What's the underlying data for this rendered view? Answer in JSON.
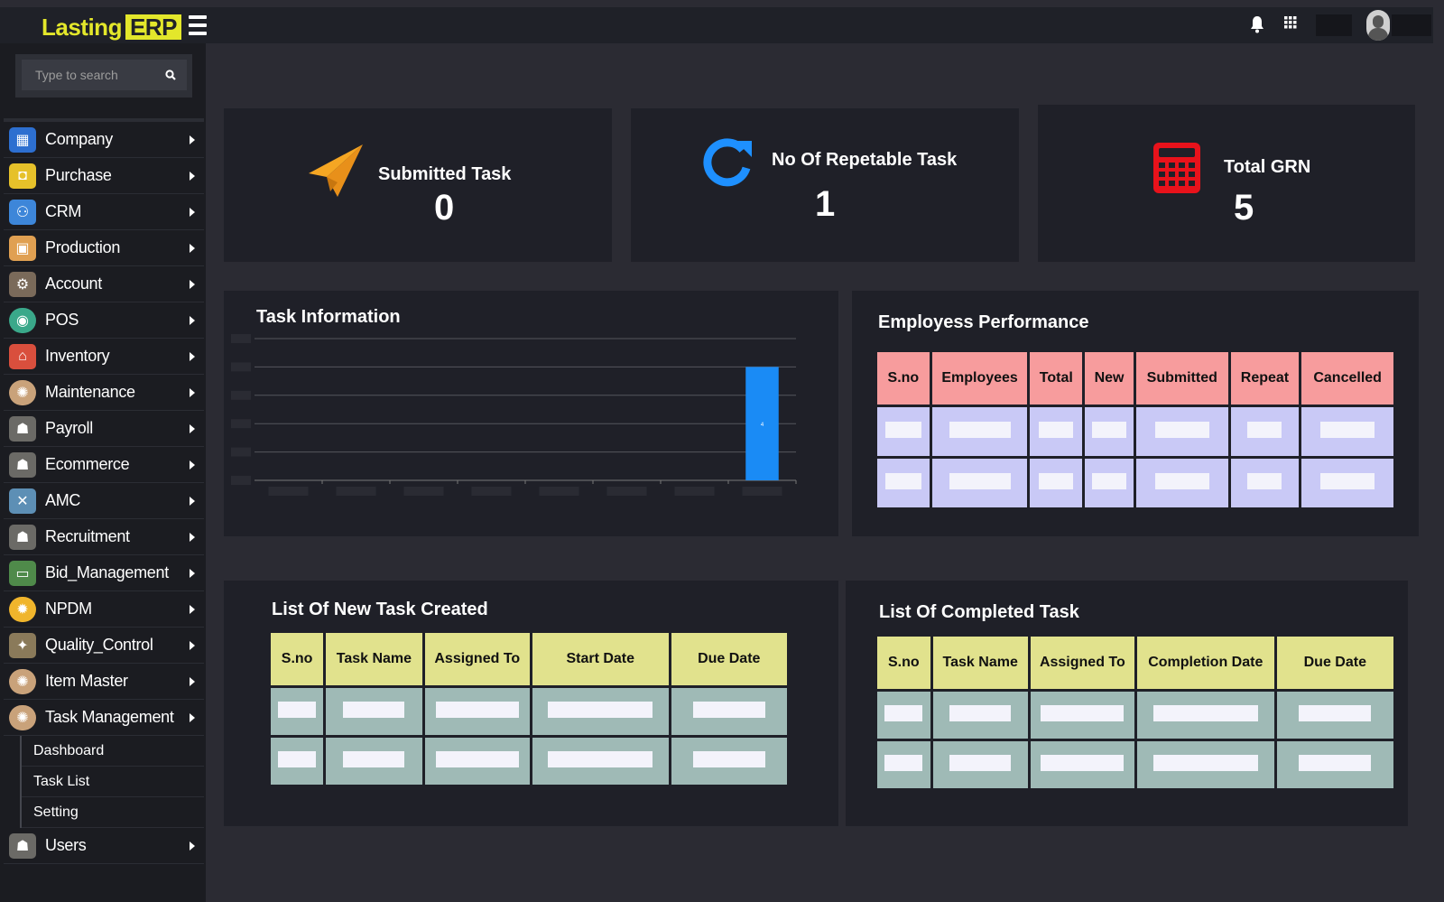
{
  "brand": {
    "part1": "Lasting",
    "part2": "ERP",
    "accent": "#e3e72b"
  },
  "search": {
    "placeholder": "Type to search"
  },
  "sidebar": {
    "items": [
      {
        "label": "Company",
        "icon": "building-icon"
      },
      {
        "label": "Purchase",
        "icon": "shopping-bag-icon"
      },
      {
        "label": "CRM",
        "icon": "people-network-icon"
      },
      {
        "label": "Production",
        "icon": "box-icon"
      },
      {
        "label": "Account",
        "icon": "account-icon"
      },
      {
        "label": "POS",
        "icon": "pos-icon"
      },
      {
        "label": "Inventory",
        "icon": "store-icon"
      },
      {
        "label": "Maintenance",
        "icon": "gear-people-icon"
      },
      {
        "label": "Payroll",
        "icon": "team-icon"
      },
      {
        "label": "Ecommerce",
        "icon": "team-icon"
      },
      {
        "label": "AMC",
        "icon": "tools-icon"
      },
      {
        "label": "Recruitment",
        "icon": "team-icon"
      },
      {
        "label": "Bid_Management",
        "icon": "laptop-icon"
      },
      {
        "label": "NPDM",
        "icon": "idea-gear-icon"
      },
      {
        "label": "Quality_Control",
        "icon": "quality-icon"
      },
      {
        "label": "Item Master",
        "icon": "gear-people-icon"
      },
      {
        "label": "Task Management",
        "icon": "gear-people-icon"
      }
    ],
    "submenu": [
      "Dashboard",
      "Task List",
      "Setting"
    ],
    "after": {
      "label": "Users",
      "icon": "team-icon"
    }
  },
  "stats": {
    "submitted": {
      "title": "Submitted Task",
      "value": "0",
      "icon": "paper-plane-icon",
      "color": "#f5a623"
    },
    "repeatable": {
      "title": "No Of Repetable Task",
      "value": "1",
      "icon": "refresh-icon",
      "color": "#1e90ff"
    },
    "grn": {
      "title": "Total GRN",
      "value": "5",
      "icon": "calculator-icon",
      "color": "#e8121b"
    }
  },
  "task_info": {
    "title": "Task Information"
  },
  "chart_data": {
    "type": "bar",
    "title": "Task Information",
    "categories": [
      "",
      "",
      "",
      "",
      "",
      "",
      "",
      ""
    ],
    "values": [
      0,
      0,
      0,
      0,
      0,
      0,
      0,
      4
    ],
    "ylim": [
      0,
      5
    ],
    "grid": true,
    "bar_color": "#1a8bf5",
    "data_labels": [
      "4"
    ]
  },
  "employee_performance": {
    "title": "Employess Performance",
    "headers": [
      "S.no",
      "Employees",
      "Total",
      "New",
      "Submitted",
      "Repeat",
      "Cancelled"
    ]
  },
  "new_tasks": {
    "title": "List Of New Task Created",
    "headers": [
      "S.no",
      "Task Name",
      "Assigned To",
      "Start Date",
      "Due Date"
    ]
  },
  "completed_tasks": {
    "title": "List Of Completed Task",
    "headers": [
      "S.no",
      "Task Name",
      "Assigned To",
      "Completion Date",
      "Due Date"
    ]
  }
}
